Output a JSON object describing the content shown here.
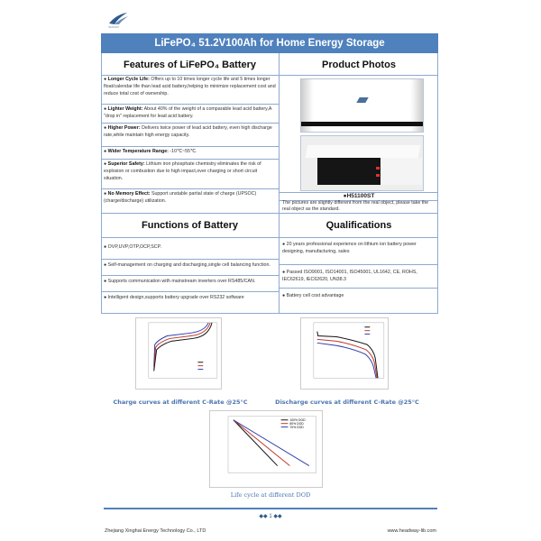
{
  "logo": {
    "name": "headway-logo",
    "text": "HEADWAY"
  },
  "title": "LiFePO₄  51.2V100Ah for Home Energy Storage",
  "features": {
    "heading": "Features of LiFePO₄ Battery",
    "items": [
      {
        "label": "Longer Cycle Life:",
        "text": " Offers up to 10 times longer cycle life and 5 times longer float/calendar life than lead acid battery,helping to minimize replacement cost and reduce total cost of ownership."
      },
      {
        "label": "Lighter Weight:",
        "text": " About 40% of the weight of a comparable lead acid battery,A \"drop in\" replacement for lead acid battery."
      },
      {
        "label": "Higher Power:",
        "text": " Delivers twice power of lead acid battery, even high discharge rate,while maintain high energy capacity."
      },
      {
        "label": "Wider Temperature Range:",
        "text": " -10℃~55℃."
      },
      {
        "label": "Superior Safety:",
        "text": " Lithium iron phosphate chemistry eliminates the risk of explosion or combustion due to high impact,over charging or short circuit situation."
      },
      {
        "label": "No Memory Effect:",
        "text": " Support unstable partial state of charge (UPSOC) (charge/discharge) utilization."
      }
    ]
  },
  "photos": {
    "heading": "Product Photos",
    "model": "●H51100ST",
    "note": "The pictures are slightly different from the real object, please take the real object as the standard."
  },
  "functions": {
    "heading": "Functions of Battery",
    "items": [
      "●  OVP,UVP,OTP,OCP,SCP.",
      "●  Self-management on charging and discharging,single cell balancing function.",
      "●  Supports communication with mainstream inverters over RS485/CAN.",
      "●  Intelligent design,supports battery upgrade over RS232 software"
    ]
  },
  "qualifications": {
    "heading": "Qualifications",
    "items": [
      "● 20 years professional experience on lithium ion battery power designing, manufacturing, sales",
      "● Passed ISO9001, ISO14001, ISO45001, UL1642, CE, ROHS, IEC62619, IEC62620, UN38.3",
      "● Battery cell cost advantage"
    ]
  },
  "charts": {
    "charge_caption": "Charge curves at different C-Rate @25°C",
    "discharge_caption": "Discharge curves at different C-Rate @25°C",
    "life_caption": "Life cycle at different DOD",
    "life_legend": [
      "100% DOD",
      "80% DOD",
      "70% DOD"
    ],
    "series_colors": [
      "#111111",
      "#c0392b",
      "#2c3eaa"
    ]
  },
  "footer": {
    "company": "Zhejiang Xinghai Energy Technology Co., LTD",
    "website": "www.headway-lib.com",
    "page": "1"
  }
}
